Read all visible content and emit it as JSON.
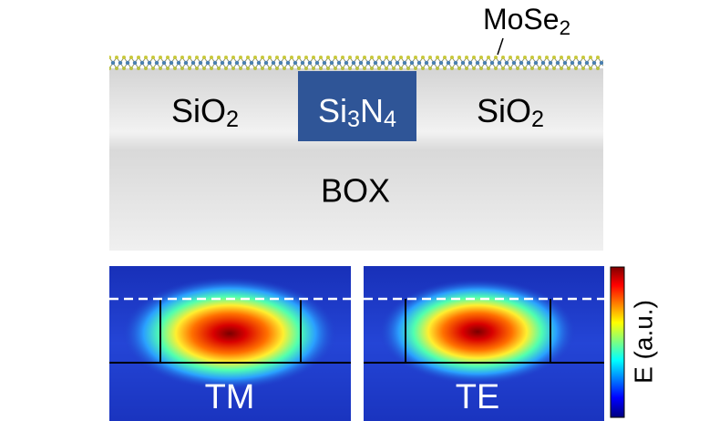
{
  "top_material": [
    "MoSe",
    "2"
  ],
  "cladding_left": [
    "SiO",
    "2"
  ],
  "core": [
    "Si",
    "3",
    "N",
    "4"
  ],
  "cladding_right": [
    "SiO",
    "2"
  ],
  "substrate": "BOX",
  "modes": [
    "TM",
    "TE"
  ],
  "colorbar_label": "E (a.u.)"
}
